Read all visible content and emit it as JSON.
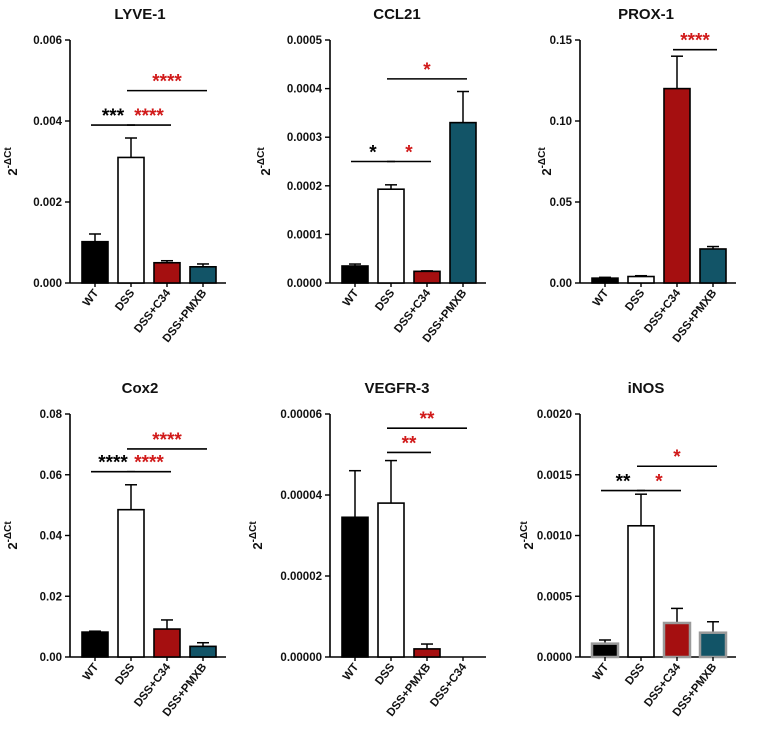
{
  "figure": {
    "description_free": true,
    "ylabel_base": "2",
    "ylabel_sup": "-ΔCt",
    "colors": {
      "black": "#000000",
      "white": "#ffffff",
      "red": "#a50f10",
      "teal": "#125467",
      "sig_red": "#d11a1a",
      "sig_black": "#000000",
      "grey_edge": "#9a9a9a"
    }
  },
  "chart_data": [
    {
      "type": "bar",
      "title": "LYVE-1",
      "ylabel": "2-ΔCt",
      "ylim": [
        0,
        0.006
      ],
      "yticks": [
        "0.000",
        "0.002",
        "0.004",
        "0.006"
      ],
      "ytick_values": [
        0,
        0.002,
        0.004,
        0.006
      ],
      "categories": [
        "WT",
        "DSS",
        "DSS+C34",
        "DSS+PMXB"
      ],
      "values": [
        0.00102,
        0.0031,
        0.0005,
        0.0004
      ],
      "errors": [
        0.00019,
        0.00048,
        5e-05,
        7e-05
      ],
      "fills": [
        "black",
        "white",
        "red",
        "teal"
      ],
      "edges": [
        "black",
        "black",
        "black",
        "black"
      ],
      "significance": [
        {
          "from": 0,
          "to": 1,
          "y": 0.0039,
          "label": "***",
          "color": "sig_black"
        },
        {
          "from": 1,
          "to": 2,
          "y": 0.0039,
          "label": "****",
          "color": "sig_red"
        },
        {
          "from": 1,
          "to": 3,
          "y": 0.00475,
          "label": "****",
          "color": "sig_red"
        }
      ]
    },
    {
      "type": "bar",
      "title": "CCL21",
      "ylabel": "2-ΔCt",
      "ylim": [
        0,
        0.0005
      ],
      "yticks": [
        "0.0000",
        "0.0001",
        "0.0002",
        "0.0003",
        "0.0004",
        "0.0005"
      ],
      "ytick_values": [
        0,
        0.0001,
        0.0002,
        0.0003,
        0.0004,
        0.0005
      ],
      "categories": [
        "WT",
        "DSS",
        "DSS+C34",
        "DSS+PMXB"
      ],
      "values": [
        3.5e-05,
        0.000193,
        2.4e-05,
        0.00033
      ],
      "errors": [
        4e-06,
        9e-06,
        1e-06,
        6.4e-05
      ],
      "fills": [
        "black",
        "white",
        "red",
        "teal"
      ],
      "edges": [
        "black",
        "black",
        "black",
        "black"
      ],
      "significance": [
        {
          "from": 0,
          "to": 1,
          "y": 0.00025,
          "label": "*",
          "color": "sig_black"
        },
        {
          "from": 1,
          "to": 2,
          "y": 0.00025,
          "label": "*",
          "color": "sig_red"
        },
        {
          "from": 1,
          "to": 3,
          "y": 0.00042,
          "label": "*",
          "color": "sig_red"
        }
      ]
    },
    {
      "type": "bar",
      "title": "PROX-1",
      "ylabel": "2-ΔCt",
      "ylim": [
        0,
        0.15
      ],
      "yticks": [
        "0.00",
        "0.05",
        "0.10",
        "0.15"
      ],
      "ytick_values": [
        0,
        0.05,
        0.1,
        0.15
      ],
      "categories": [
        "WT",
        "DSS",
        "DSS+C34",
        "DSS+PMXB"
      ],
      "values": [
        0.003,
        0.004,
        0.12,
        0.021
      ],
      "errors": [
        0.0005,
        0.0005,
        0.02,
        0.0015
      ],
      "fills": [
        "black",
        "white",
        "red",
        "teal"
      ],
      "edges": [
        "black",
        "black",
        "black",
        "black"
      ],
      "significance": [
        {
          "from": 2,
          "to": 3,
          "y": 0.144,
          "label": "****",
          "color": "sig_red"
        }
      ]
    },
    {
      "type": "bar",
      "title": "Cox2",
      "ylabel": "2-ΔCt",
      "ylim": [
        0,
        0.08
      ],
      "yticks": [
        "0.00",
        "0.02",
        "0.04",
        "0.06",
        "0.08"
      ],
      "ytick_values": [
        0,
        0.02,
        0.04,
        0.06,
        0.08
      ],
      "categories": [
        "WT",
        "DSS",
        "DSS+C34",
        "DSS+PMXB"
      ],
      "values": [
        0.0082,
        0.0485,
        0.0092,
        0.0035
      ],
      "errors": [
        0.0003,
        0.0082,
        0.003,
        0.0012
      ],
      "fills": [
        "black",
        "white",
        "red",
        "teal"
      ],
      "edges": [
        "black",
        "black",
        "black",
        "black"
      ],
      "significance": [
        {
          "from": 0,
          "to": 1,
          "y": 0.061,
          "label": "****",
          "color": "sig_black"
        },
        {
          "from": 1,
          "to": 2,
          "y": 0.061,
          "label": "****",
          "color": "sig_red"
        },
        {
          "from": 1,
          "to": 3,
          "y": 0.0685,
          "label": "****",
          "color": "sig_red"
        }
      ]
    },
    {
      "type": "bar",
      "title": "VEGFR-3",
      "ylabel": "2-ΔCt",
      "ylim": [
        0,
        6e-05
      ],
      "yticks": [
        "0.00000",
        "0.00002",
        "0.00004",
        "0.00006"
      ],
      "ytick_values": [
        0,
        2e-05,
        4e-05,
        6e-05
      ],
      "categories": [
        "WT",
        "DSS",
        "DSS+PMXB",
        "DSS+C34"
      ],
      "values": [
        3.45e-05,
        3.8e-05,
        2e-06,
        0.0
      ],
      "errors": [
        1.15e-05,
        1.05e-05,
        1.2e-06,
        0.0
      ],
      "fills": [
        "black",
        "white",
        "red",
        "teal"
      ],
      "edges": [
        "black",
        "black",
        "black",
        "black"
      ],
      "significance": [
        {
          "from": 1,
          "to": 2,
          "y": 5.05e-05,
          "label": "**",
          "color": "sig_red"
        },
        {
          "from": 1,
          "to": 3,
          "y": 5.65e-05,
          "label": "**",
          "color": "sig_red"
        }
      ]
    },
    {
      "type": "bar",
      "title": "iNOS",
      "ylabel": "2-ΔCt",
      "ylim": [
        0,
        0.002
      ],
      "yticks": [
        "0.0000",
        "0.0005",
        "0.0010",
        "0.0015",
        "0.0020"
      ],
      "ytick_values": [
        0,
        0.0005,
        0.001,
        0.0015,
        0.002
      ],
      "categories": [
        "WT",
        "DSS",
        "DSS+C34",
        "DSS+PMXB"
      ],
      "values": [
        0.00011,
        0.00108,
        0.00028,
        0.0002
      ],
      "errors": [
        3e-05,
        0.00026,
        0.00012,
        9e-05
      ],
      "fills": [
        "black",
        "white",
        "red",
        "teal"
      ],
      "edges": [
        "grey_edge",
        "black",
        "grey_edge",
        "grey_edge"
      ],
      "significance": [
        {
          "from": 0,
          "to": 1,
          "y": 0.00137,
          "label": "**",
          "color": "sig_black"
        },
        {
          "from": 1,
          "to": 2,
          "y": 0.00137,
          "label": "*",
          "color": "sig_red"
        },
        {
          "from": 1,
          "to": 3,
          "y": 0.00157,
          "label": "*",
          "color": "sig_red"
        }
      ]
    }
  ]
}
